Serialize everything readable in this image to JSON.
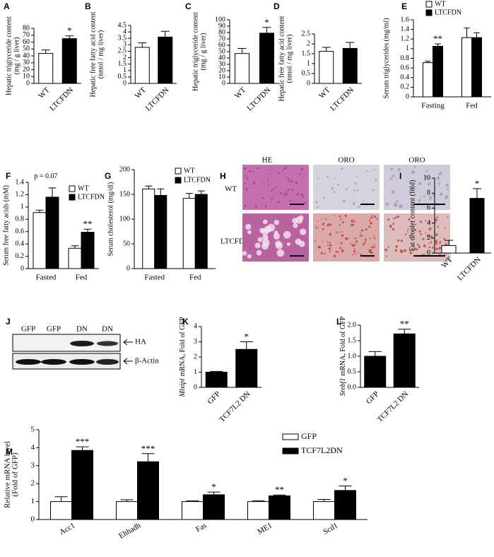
{
  "chart_data": [
    {
      "type": "bar",
      "panel": "A",
      "ylabel": [
        "Hepatic triglyceride content",
        "(mg / g liver)"
      ],
      "categories": [
        "WT",
        "LTCFDN"
      ],
      "values": [
        43.5,
        65
      ],
      "errors": [
        5,
        4
      ],
      "colors": [
        "#ffffff",
        "#000000"
      ],
      "significance": [
        null,
        "*"
      ],
      "ylim": [
        0,
        80
      ],
      "yticks": [
        0,
        10,
        20,
        30,
        40,
        50,
        60,
        70,
        80
      ]
    },
    {
      "type": "bar",
      "panel": "B",
      "ylabel": [
        "Hepatic free fatty acid content",
        "(nmol / mg liver)"
      ],
      "categories": [
        "WT",
        "LTCFDN"
      ],
      "values": [
        2.8,
        3.6
      ],
      "errors": [
        0.35,
        0.45
      ],
      "colors": [
        "#ffffff",
        "#000000"
      ],
      "ylim": [
        0,
        4.5
      ],
      "yticks": [
        0,
        0.5,
        1,
        1.5,
        2,
        2.5,
        3,
        3.5,
        4,
        4.5
      ]
    },
    {
      "type": "bar",
      "panel": "C",
      "ylabel": [
        "Hepatic triglyceride content",
        "(mg / g liver)"
      ],
      "categories": [
        "WT",
        "LTCFDN"
      ],
      "values": [
        47,
        79
      ],
      "errors": [
        8,
        9
      ],
      "colors": [
        "#ffffff",
        "#000000"
      ],
      "significance": [
        null,
        "*"
      ],
      "ylim": [
        0,
        100
      ],
      "yticks": [
        0,
        10,
        20,
        30,
        40,
        50,
        60,
        70,
        80,
        90,
        100
      ]
    },
    {
      "type": "bar",
      "panel": "D",
      "ylabel": [
        "Hepatic free fatty acid content",
        "(nmol / mg liver)"
      ],
      "categories": [
        "WT",
        "LTCFDN"
      ],
      "values": [
        1.62,
        1.77
      ],
      "errors": [
        0.2,
        0.3
      ],
      "colors": [
        "#ffffff",
        "#000000"
      ],
      "ylim": [
        0,
        2.5
      ],
      "yticks": [
        0,
        0.5,
        1,
        1.5,
        2,
        2.5
      ]
    },
    {
      "type": "bar",
      "panel": "E",
      "ylabel": [
        "Serum triglycerides (mg/ml)"
      ],
      "categories": [
        "Fasting",
        "Fed"
      ],
      "series": [
        {
          "name": "WT",
          "color": "#ffffff",
          "values": [
            0.71,
            1.23
          ],
          "errors": [
            0.03,
            0.2
          ]
        },
        {
          "name": "LTCFDN",
          "color": "#000000",
          "values": [
            1.05,
            1.23
          ],
          "errors": [
            0.05,
            0.1
          ],
          "significance": [
            "**",
            null
          ]
        }
      ],
      "ylim": [
        0,
        1.6
      ],
      "yticks": [
        0,
        0.2,
        0.4,
        0.6,
        0.8,
        1,
        1.2,
        1.4,
        1.6
      ]
    },
    {
      "type": "bar",
      "panel": "F",
      "ylabel": [
        "Serum free fatty acids (mM)"
      ],
      "annotation": "p = 0.07",
      "categories": [
        "Fasted",
        "Fed"
      ],
      "series": [
        {
          "name": "WT",
          "color": "#ffffff",
          "values": [
            0.91,
            0.33
          ],
          "errors": [
            0.04,
            0.04
          ]
        },
        {
          "name": "LTCFDN",
          "color": "#000000",
          "values": [
            1.16,
            0.59
          ],
          "errors": [
            0.15,
            0.05
          ],
          "significance": [
            null,
            "**"
          ]
        }
      ],
      "ylim": [
        0,
        1.4
      ],
      "yticks": [
        0,
        0.2,
        0.4,
        0.6,
        0.8,
        1,
        1.2,
        1.4
      ]
    },
    {
      "type": "bar",
      "panel": "G",
      "ylabel": [
        "Serum cholesterol (mg/dl)"
      ],
      "categories": [
        "Fasted",
        "Fed"
      ],
      "series": [
        {
          "name": "WT",
          "color": "#ffffff",
          "values": [
            161,
            142
          ],
          "errors": [
            6,
            10
          ]
        },
        {
          "name": "LTCFDN",
          "color": "#000000",
          "values": [
            148,
            150
          ],
          "errors": [
            13,
            7
          ]
        }
      ],
      "ylim": [
        0,
        200
      ],
      "yticks": [
        0,
        50,
        100,
        150,
        200
      ]
    },
    {
      "type": "bar",
      "panel": "I",
      "ylabel": [
        "Fat droplet content (fold)"
      ],
      "categories": [
        "WT",
        "LTCFDN"
      ],
      "values": [
        1.0,
        7.3
      ],
      "errors": [
        0.7,
        1.3
      ],
      "colors": [
        "#ffffff",
        "#000000"
      ],
      "significance": [
        null,
        "*"
      ],
      "ylim": [
        0,
        10
      ],
      "yticks": [
        0,
        2,
        4,
        6,
        8,
        10
      ]
    },
    {
      "type": "bar",
      "panel": "K",
      "ylabel_gene": "Mlxipl",
      "ylabel": [
        "mRNA, Fold of GFP"
      ],
      "categories": [
        "GFP",
        "TCF7L2 DN"
      ],
      "values": [
        1.0,
        2.5
      ],
      "errors": [
        0.05,
        0.5
      ],
      "colors": [
        "#000000",
        "#000000"
      ],
      "significance": [
        null,
        "*"
      ],
      "ylim": [
        0,
        4
      ],
      "yticks": [
        0,
        1,
        2,
        3,
        4
      ]
    },
    {
      "type": "bar",
      "panel": "L",
      "ylabel_gene": "Srebf1",
      "ylabel": [
        "mRNA, Fold of GFP"
      ],
      "categories": [
        "GFP",
        "TCF7L2 DN"
      ],
      "values": [
        1.0,
        1.72
      ],
      "errors": [
        0.15,
        0.15
      ],
      "colors": [
        "#000000",
        "#000000"
      ],
      "significance": [
        null,
        "**"
      ],
      "ylim": [
        0,
        2
      ],
      "yticks": [
        {
          "value": 0,
          "label": "0.0"
        },
        {
          "value": 0.5,
          "label": "0.5"
        },
        {
          "value": 1,
          "label": "1.0"
        },
        {
          "value": 1.5,
          "label": "1.5"
        },
        {
          "value": 2,
          "label": "2.0"
        }
      ]
    },
    {
      "type": "bar",
      "panel": "M",
      "ylabel": [
        "Relative mRNA level",
        "(Fold of GFP)"
      ],
      "categories": [
        "Acc1",
        "Ehhadh",
        "Fas",
        "ME1",
        "Scd1"
      ],
      "series": [
        {
          "name": "GFP",
          "color": "#ffffff",
          "values": [
            1.0,
            1.0,
            1.0,
            1.0,
            1.0
          ],
          "errors": [
            0.27,
            0.1,
            0.04,
            0.04,
            0.12
          ]
        },
        {
          "name": "TCF7L2DN",
          "color": "#000000",
          "values": [
            3.85,
            3.22,
            1.38,
            1.32,
            1.62
          ],
          "errors": [
            0.2,
            0.45,
            0.15,
            0.05,
            0.25
          ],
          "significance": [
            "***",
            "***",
            "*",
            "**",
            "*"
          ]
        }
      ],
      "ylim": [
        0,
        5
      ],
      "yticks": [
        0,
        1,
        2,
        3,
        4,
        5
      ]
    }
  ],
  "histology": {
    "panel": "H",
    "columns": [
      "HE",
      "ORO",
      "ORO"
    ],
    "rows": [
      "WT",
      "LTCFDN"
    ]
  },
  "western_blot": {
    "panel": "J",
    "lanes": [
      "GFP",
      "GFP",
      "DN",
      "DN"
    ],
    "bands": [
      "HA",
      "β-Actin"
    ]
  }
}
